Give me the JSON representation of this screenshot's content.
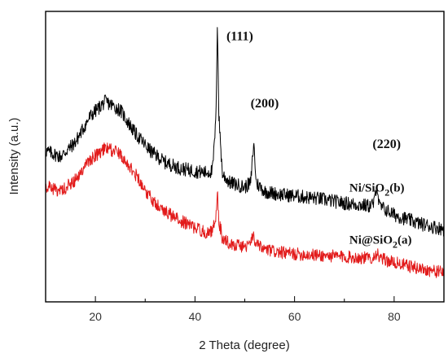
{
  "chart_data": {
    "type": "line",
    "xlabel": "2 Theta (degree)",
    "ylabel": "Intensity (a.u.)",
    "xlim": [
      10,
      90
    ],
    "ylim": [
      0,
      100
    ],
    "x_ticks": [
      20,
      40,
      60,
      80
    ],
    "y_ticks_shown": false,
    "grid": false,
    "legend": "none",
    "series": [
      {
        "name": "Ni/SiO2(b)",
        "color": "#000000",
        "noise": 2.4,
        "points": [
          [
            10,
            52
          ],
          [
            13,
            50
          ],
          [
            16,
            55
          ],
          [
            19,
            64
          ],
          [
            22,
            69
          ],
          [
            25,
            66
          ],
          [
            28,
            58
          ],
          [
            31,
            52
          ],
          [
            34,
            48
          ],
          [
            37,
            46
          ],
          [
            40,
            45
          ],
          [
            42,
            44.5
          ],
          [
            43.5,
            45
          ],
          [
            44.2,
            62
          ],
          [
            44.5,
            98
          ],
          [
            44.8,
            64
          ],
          [
            45.5,
            44
          ],
          [
            47,
            41
          ],
          [
            50,
            39.5
          ],
          [
            51.2,
            41
          ],
          [
            51.8,
            55
          ],
          [
            52.3,
            41
          ],
          [
            54,
            38
          ],
          [
            57,
            37
          ],
          [
            60,
            36.5
          ],
          [
            65,
            35.5
          ],
          [
            70,
            34
          ],
          [
            75,
            33
          ],
          [
            76,
            34
          ],
          [
            76.5,
            41
          ],
          [
            77,
            33
          ],
          [
            80,
            30
          ],
          [
            85,
            27
          ],
          [
            90,
            25
          ]
        ]
      },
      {
        "name": "Ni@SiO2(a)",
        "color": "#e21a1a",
        "noise": 2.2,
        "points": [
          [
            10,
            40
          ],
          [
            13,
            38
          ],
          [
            16,
            42
          ],
          [
            19,
            49
          ],
          [
            22,
            53
          ],
          [
            25,
            51
          ],
          [
            28,
            44
          ],
          [
            31,
            36
          ],
          [
            34,
            31
          ],
          [
            37,
            28
          ],
          [
            40,
            25.5
          ],
          [
            42,
            24
          ],
          [
            43.5,
            24
          ],
          [
            44.2,
            30
          ],
          [
            44.5,
            38
          ],
          [
            44.8,
            28
          ],
          [
            45.5,
            22
          ],
          [
            47,
            20
          ],
          [
            50,
            19
          ],
          [
            51.2,
            19.5
          ],
          [
            51.7,
            24
          ],
          [
            52.2,
            19.5
          ],
          [
            54,
            18
          ],
          [
            57,
            17
          ],
          [
            60,
            16.5
          ],
          [
            65,
            16
          ],
          [
            70,
            15.5
          ],
          [
            75,
            15
          ],
          [
            76,
            15.5
          ],
          [
            76.5,
            17
          ],
          [
            77,
            15
          ],
          [
            80,
            13.5
          ],
          [
            85,
            11.5
          ],
          [
            90,
            10
          ]
        ]
      }
    ],
    "peak_labels": [
      {
        "text": "(111)",
        "x": 49,
        "y": 90
      },
      {
        "text": "(200)",
        "x": 54,
        "y": 67
      },
      {
        "text": "(220)",
        "x": 78.5,
        "y": 53
      }
    ],
    "series_labels": [
      {
        "text": "Ni/SiO",
        "sub": "2",
        "tail": "(b)",
        "x": 71,
        "y": 38
      },
      {
        "text": "Ni@SiO",
        "sub": "2",
        "tail": "(a)",
        "x": 71,
        "y": 20
      }
    ]
  }
}
